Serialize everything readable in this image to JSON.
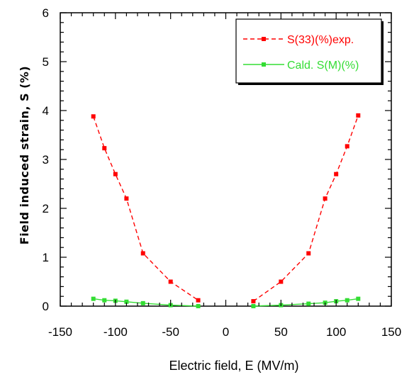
{
  "chart_data": {
    "type": "line",
    "title": "",
    "xlabel": "Electric field, E (MV/m)",
    "ylabel": "Field induced strain, S (%)",
    "xlim": [
      -150,
      150
    ],
    "ylim": [
      0,
      6
    ],
    "x_ticks": [
      "-150",
      "-100",
      "-50",
      "0",
      "50",
      "100",
      "150"
    ],
    "y_ticks": [
      "0",
      "1",
      "2",
      "3",
      "4",
      "5",
      "6"
    ],
    "legend_position": "top-right",
    "grid": false,
    "series": [
      {
        "name": "S(33)(%)exp.",
        "color": "#ff0000",
        "line_style": "dashed",
        "marker": "square",
        "points": [
          [
            -120,
            3.88
          ],
          [
            -110,
            3.23
          ],
          [
            -100,
            2.7
          ],
          [
            -90,
            2.2
          ],
          [
            -75,
            1.08
          ],
          [
            -50,
            0.5
          ],
          [
            -25,
            0.12
          ],
          [
            25,
            0.1
          ],
          [
            50,
            0.5
          ],
          [
            75,
            1.08
          ],
          [
            90,
            2.2
          ],
          [
            100,
            2.7
          ],
          [
            110,
            3.27
          ],
          [
            120,
            3.9
          ]
        ]
      },
      {
        "name": "Cald. S(M)(%)",
        "color": "#33dd33",
        "line_style": "solid",
        "marker": "square",
        "points": [
          [
            -120,
            0.15
          ],
          [
            -110,
            0.12
          ],
          [
            -100,
            0.11
          ],
          [
            -90,
            0.09
          ],
          [
            -75,
            0.06
          ],
          [
            -50,
            0.02
          ],
          [
            -25,
            0.0
          ],
          [
            25,
            0.0
          ],
          [
            50,
            0.02
          ],
          [
            75,
            0.05
          ],
          [
            90,
            0.07
          ],
          [
            100,
            0.1
          ],
          [
            110,
            0.12
          ],
          [
            120,
            0.15
          ]
        ]
      }
    ]
  }
}
